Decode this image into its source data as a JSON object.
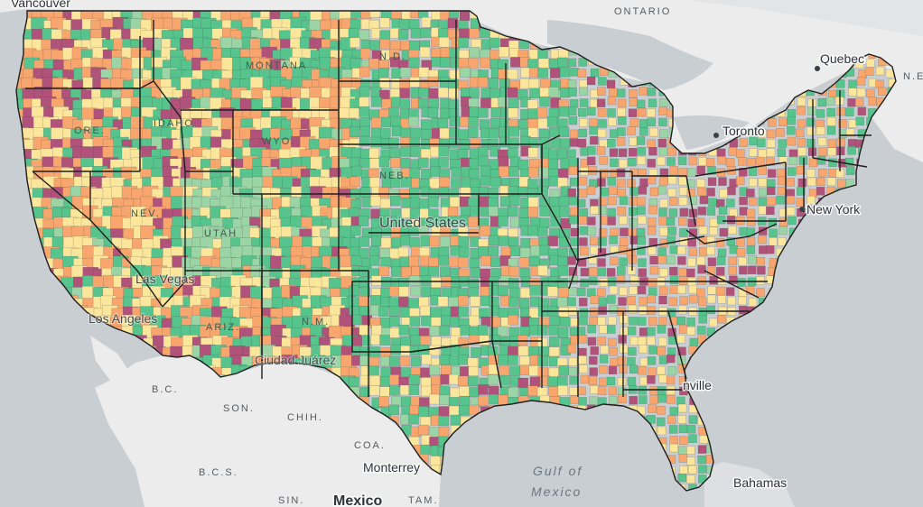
{
  "map": {
    "colors": {
      "water": "#c9ced3",
      "land": "#ececec",
      "palette": [
        "#57c48d",
        "#fce69c",
        "#f8a66e",
        "#b1527a",
        "#9bd4a5"
      ],
      "state_border": "#222222"
    },
    "labels": {
      "vancouver": "Vancouver",
      "ontario": "ONTARIO",
      "quebec": "Quebec",
      "ne": "N.E",
      "toronto": "Toronto",
      "new_york": "New York",
      "united_states": "United States",
      "las_vegas": "Las Vegas",
      "los_angeles": "Los Angeles",
      "ciudad_juarez": "Ciudad Juárez",
      "bc": "B.C.",
      "son": "SON.",
      "chih": "CHIH.",
      "coa": "COA.",
      "monterrey": "Monterrey",
      "bcs": "B.C.S.",
      "sin": "SIN.",
      "mexico": "Mexico",
      "tam": "TAM.",
      "gulf_line1": "Gulf of",
      "gulf_line2": "Mexico",
      "jacksonville": "nville",
      "bahamas": "Bahamas",
      "montana": "MONTANA",
      "idaho": "IDAHO",
      "utah": "UTAH",
      "wyo": "WYO.",
      "nev": "NEV.",
      "ariz": "ARIZ.",
      "nm": "N.M.",
      "nd": "N.D.",
      "neb": "NEB.",
      "ore": "ORE."
    }
  }
}
